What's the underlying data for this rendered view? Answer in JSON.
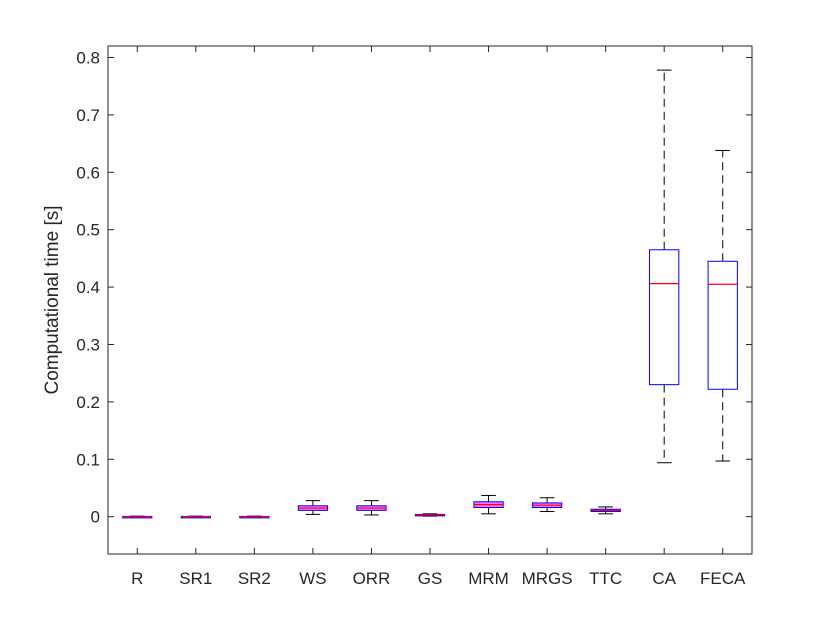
{
  "chart_data": {
    "type": "box",
    "title": "",
    "xlabel": "",
    "ylabel": "Computational time [s]",
    "ylim": [
      -0.065,
      0.82
    ],
    "yticks": [
      0,
      0.1,
      0.2,
      0.3,
      0.4,
      0.5,
      0.6,
      0.7,
      0.8
    ],
    "ytick_labels": [
      "0",
      "0.1",
      "0.2",
      "0.3",
      "0.4",
      "0.5",
      "0.6",
      "0.7",
      "0.8"
    ],
    "grid": false,
    "categories": [
      "R",
      "SR1",
      "SR2",
      "WS",
      "ORR",
      "GS",
      "MRM",
      "MRGS",
      "TTC",
      "CA",
      "FECA"
    ],
    "boxes": [
      {
        "category": "R",
        "min": 0.0,
        "q1": 0.0,
        "median": 0.0,
        "q3": 0.0005,
        "max": 0.001
      },
      {
        "category": "SR1",
        "min": 0.0,
        "q1": 0.0,
        "median": 0.0,
        "q3": 0.0005,
        "max": 0.001
      },
      {
        "category": "SR2",
        "min": 0.0,
        "q1": 0.0,
        "median": 0.0,
        "q3": 0.0005,
        "max": 0.001
      },
      {
        "category": "WS",
        "min": 0.004,
        "q1": 0.011,
        "median": 0.015,
        "q3": 0.019,
        "max": 0.028
      },
      {
        "category": "ORR",
        "min": 0.003,
        "q1": 0.011,
        "median": 0.015,
        "q3": 0.019,
        "max": 0.028
      },
      {
        "category": "GS",
        "min": 0.001,
        "q1": 0.002,
        "median": 0.003,
        "q3": 0.004,
        "max": 0.005
      },
      {
        "category": "MRM",
        "min": 0.005,
        "q1": 0.016,
        "median": 0.021,
        "q3": 0.026,
        "max": 0.037
      },
      {
        "category": "MRGS",
        "min": 0.009,
        "q1": 0.016,
        "median": 0.02,
        "q3": 0.024,
        "max": 0.033
      },
      {
        "category": "TTC",
        "min": 0.005,
        "q1": 0.009,
        "median": 0.011,
        "q3": 0.013,
        "max": 0.017
      },
      {
        "category": "CA",
        "min": 0.094,
        "q1": 0.23,
        "median": 0.406,
        "q3": 0.465,
        "max": 0.778
      },
      {
        "category": "FECA",
        "min": 0.097,
        "q1": 0.222,
        "median": 0.405,
        "q3": 0.445,
        "max": 0.638
      }
    ],
    "colors": {
      "box": "#0000ff",
      "median": "#ff0000",
      "whisker": "#000000",
      "box_fill_small": "#ff00ff",
      "axis": "#262626"
    }
  }
}
